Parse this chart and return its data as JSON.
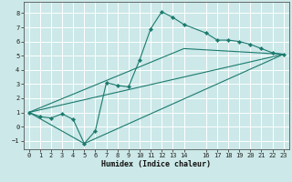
{
  "xlabel": "Humidex (Indice chaleur)",
  "ylabel": "",
  "bg_color": "#cce8e8",
  "grid_color": "#ffffff",
  "line_color": "#1a7a6e",
  "xlim": [
    -0.5,
    23.5
  ],
  "ylim": [
    -1.6,
    8.8
  ],
  "xticks": [
    0,
    1,
    2,
    3,
    4,
    5,
    6,
    7,
    8,
    9,
    10,
    11,
    12,
    13,
    14,
    16,
    17,
    18,
    19,
    20,
    21,
    22,
    23
  ],
  "yticks": [
    -1,
    0,
    1,
    2,
    3,
    4,
    5,
    6,
    7,
    8
  ],
  "line1_x": [
    0,
    1,
    2,
    3,
    4,
    5,
    6,
    7,
    8,
    9,
    10,
    11,
    12,
    13,
    14,
    16,
    17,
    18,
    19,
    20,
    21,
    22,
    23
  ],
  "line1_y": [
    1.0,
    0.7,
    0.6,
    0.9,
    0.5,
    -1.2,
    -0.3,
    3.1,
    2.9,
    2.8,
    4.7,
    6.9,
    8.1,
    7.7,
    7.2,
    6.6,
    6.1,
    6.1,
    6.0,
    5.8,
    5.5,
    5.2,
    5.1
  ],
  "line2_x": [
    0,
    23
  ],
  "line2_y": [
    1.0,
    5.1
  ],
  "line3_x": [
    0,
    14,
    23
  ],
  "line3_y": [
    1.0,
    5.5,
    5.1
  ],
  "line4_x": [
    0,
    5,
    23
  ],
  "line4_y": [
    1.0,
    -1.2,
    5.1
  ]
}
